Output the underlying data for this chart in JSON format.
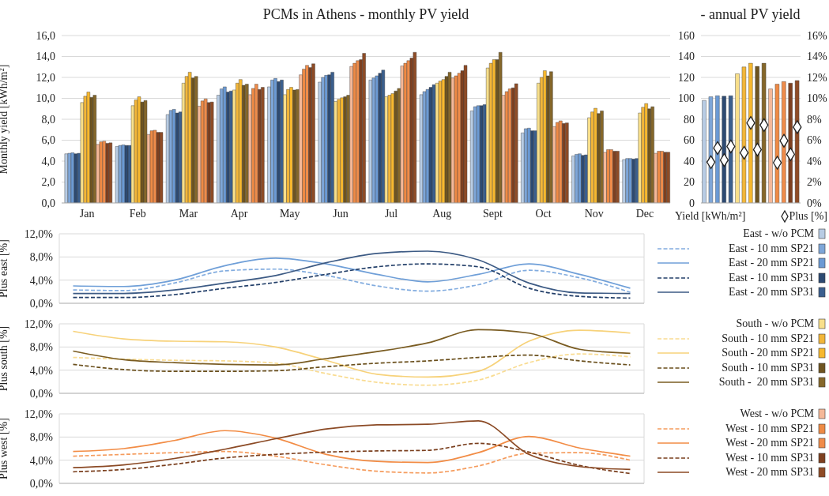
{
  "chart_data": [
    {
      "type": "bar",
      "title": "PCMs in Athens - monthly PV yield",
      "ylabel": "Monthly yield [kWh/m²]",
      "categories": [
        "Jan",
        "Feb",
        "Mar",
        "Apr",
        "May",
        "Jun",
        "Jul",
        "Aug",
        "Sept",
        "Oct",
        "Nov",
        "Dec"
      ],
      "series": [
        {
          "name": "East - w/o PCM",
          "color": "#b8cce4",
          "values": [
            4.7,
            5.4,
            8.45,
            10.3,
            11.1,
            11.55,
            11.75,
            10.35,
            8.8,
            6.7,
            4.5,
            4.15
          ]
        },
        {
          "name": "East - 10 mm SP21",
          "color": "#7ea6d8",
          "values": [
            4.75,
            5.5,
            8.85,
            10.9,
            11.75,
            12.0,
            11.95,
            10.65,
            9.2,
            7.1,
            4.65,
            4.25
          ]
        },
        {
          "name": "East - 20 mm SP21",
          "color": "#6b9ad4",
          "values": [
            4.8,
            5.55,
            8.95,
            11.1,
            11.9,
            12.2,
            12.15,
            10.85,
            9.3,
            7.15,
            4.7,
            4.25
          ]
        },
        {
          "name": "East - 10 mm SP31",
          "color": "#2d4a72",
          "values": [
            4.7,
            5.5,
            8.6,
            10.6,
            11.6,
            12.25,
            12.4,
            11.05,
            9.3,
            6.9,
            4.55,
            4.2
          ]
        },
        {
          "name": "East - 20 mm SP31",
          "color": "#3b5f8e",
          "values": [
            4.75,
            5.5,
            8.7,
            10.7,
            11.75,
            12.5,
            12.7,
            11.3,
            9.4,
            6.9,
            4.6,
            4.25
          ]
        },
        {
          "name": "South - w/o PCM",
          "color": "#f8df8a",
          "values": [
            9.6,
            9.3,
            11.45,
            10.8,
            10.35,
            9.7,
            10.15,
            11.45,
            12.9,
            11.45,
            8.15,
            8.6
          ]
        },
        {
          "name": "South - 10 mm SP21",
          "color": "#f2b63a",
          "values": [
            10.2,
            9.85,
            12.1,
            11.45,
            10.85,
            9.9,
            10.3,
            11.65,
            13.35,
            12.0,
            8.7,
            9.15
          ]
        },
        {
          "name": "South - 20 mm SP21",
          "color": "#f7b82e",
          "values": [
            10.6,
            10.15,
            12.5,
            11.8,
            11.05,
            10.05,
            10.45,
            11.8,
            13.7,
            12.65,
            9.05,
            9.5
          ]
        },
        {
          "name": "South - 10 mm SP31",
          "color": "#6e5420",
          "values": [
            10.1,
            9.65,
            11.95,
            11.25,
            10.8,
            10.15,
            10.7,
            12.1,
            13.7,
            12.15,
            8.55,
            9.0
          ]
        },
        {
          "name": "South -  20 mm SP31",
          "color": "#85672a",
          "values": [
            10.3,
            9.8,
            12.1,
            11.35,
            10.85,
            10.3,
            10.95,
            12.5,
            14.4,
            12.55,
            8.8,
            9.2
          ]
        },
        {
          "name": "West - w/o PCM",
          "color": "#f5b898",
          "values": [
            5.6,
            6.55,
            9.25,
            10.35,
            12.25,
            13.05,
            13.1,
            11.95,
            10.3,
            7.3,
            4.85,
            4.75
          ]
        },
        {
          "name": "West - 10 mm SP21",
          "color": "#ee8a45",
          "values": [
            5.85,
            6.9,
            9.75,
            10.95,
            12.8,
            13.35,
            13.35,
            12.15,
            10.65,
            7.7,
            5.1,
            4.95
          ]
        },
        {
          "name": "West - 20 mm SP21",
          "color": "#f08c4a",
          "values": [
            5.9,
            6.95,
            9.95,
            11.35,
            13.15,
            13.6,
            13.6,
            12.4,
            10.9,
            7.85,
            5.1,
            4.95
          ]
        },
        {
          "name": "West - 10 mm SP31",
          "color": "#7e4020",
          "values": [
            5.7,
            6.75,
            9.6,
            10.85,
            12.95,
            13.7,
            13.85,
            12.65,
            11.0,
            7.6,
            4.95,
            4.85
          ]
        },
        {
          "name": "West - 20 mm SP31",
          "color": "#8f4c26",
          "values": [
            5.75,
            6.75,
            9.65,
            11.05,
            13.3,
            14.3,
            14.4,
            13.15,
            11.4,
            7.65,
            4.95,
            4.85
          ]
        }
      ],
      "ylim": [
        0,
        16
      ],
      "yticks": [
        {
          "value": 0,
          "label": "0,0"
        },
        {
          "value": 2,
          "label": "2,0"
        },
        {
          "value": 4,
          "label": "4,0"
        },
        {
          "value": 6,
          "label": "6,0"
        },
        {
          "value": 8,
          "label": "8,0"
        },
        {
          "value": 10,
          "label": "10,0"
        },
        {
          "value": 12,
          "label": "12,0"
        },
        {
          "value": 14,
          "label": "14,0"
        },
        {
          "value": 16,
          "label": "16,0"
        }
      ],
      "grid": "y",
      "legend": "right"
    },
    {
      "type": "bar",
      "title": "- annual PV yield",
      "xlabel": "Yield [kWh/m²]",
      "categories": [
        null,
        null,
        null,
        null,
        null,
        null,
        null,
        null,
        null,
        null,
        null,
        null,
        null,
        null,
        null
      ],
      "series": [
        {
          "values": [
            98,
            101.5,
            102.5,
            102,
            102.5,
            123.5,
            130,
            133.5,
            130.5,
            133.5,
            109,
            113.5,
            116,
            114.5,
            117
          ],
          "colors": [
            "#b8cce4",
            "#7ea6d8",
            "#6b9ad4",
            "#2d4a72",
            "#3b5f8e",
            "#f8df8a",
            "#f2b63a",
            "#f7b82e",
            "#6e5420",
            "#85672a",
            "#f5b898",
            "#ee8a45",
            "#f08c4a",
            "#7e4020",
            "#8f4c26"
          ]
        },
        {
          "type": "scatter",
          "name": "Plus [%]",
          "axis": "y2",
          "color": "#ffffff",
          "marker": "diamond",
          "values": [
            null,
            3.9,
            5.25,
            4.1,
            5.4,
            null,
            4.8,
            7.65,
            5.1,
            7.45,
            null,
            3.85,
            5.95,
            4.65,
            7.25
          ]
        }
      ],
      "ylim": [
        0,
        160
      ],
      "yticks": [
        0,
        20,
        40,
        60,
        80,
        100,
        120,
        140,
        160
      ],
      "y2lim": [
        0,
        16
      ],
      "y2ticks": [
        {
          "value": 0,
          "label": "0%"
        },
        {
          "value": 2,
          "label": "2%"
        },
        {
          "value": 4,
          "label": "4%"
        },
        {
          "value": 6,
          "label": "6%"
        },
        {
          "value": 8,
          "label": "8%"
        },
        {
          "value": 10,
          "label": "10%"
        },
        {
          "value": 12,
          "label": "12%"
        },
        {
          "value": 14,
          "label": "14%"
        },
        {
          "value": 16,
          "label": "16%"
        }
      ],
      "grid": "y",
      "legend": "bottom",
      "tick_labels": "y"
    },
    {
      "type": "line",
      "ylabel": "Plus east [%]",
      "categories": [
        null,
        null,
        null,
        null,
        null,
        null,
        null,
        null,
        null,
        null,
        null,
        null
      ],
      "series": [
        {
          "color": "#82acdf",
          "line_style": "dashed",
          "values": [
            2.3,
            2.2,
            3.5,
            5.6,
            5.9,
            4.8,
            3.0,
            2.1,
            3.2,
            5.7,
            4.4,
            1.9
          ]
        },
        {
          "color": "#6f9fd8",
          "values": [
            3.0,
            2.9,
            4.0,
            6.5,
            7.8,
            6.8,
            5.0,
            3.7,
            5.0,
            6.8,
            5.0,
            2.6
          ]
        },
        {
          "color": "#24406a",
          "line_style": "dashed",
          "values": [
            1.0,
            1.0,
            1.5,
            2.6,
            3.6,
            5.0,
            6.3,
            6.8,
            6.3,
            2.6,
            1.2,
            0.9
          ]
        },
        {
          "color": "#3c5a84",
          "values": [
            1.7,
            1.7,
            2.3,
            3.5,
            4.8,
            7.0,
            8.6,
            9.0,
            7.5,
            3.5,
            1.8,
            1.7
          ]
        }
      ],
      "ylim": [
        0,
        12
      ],
      "yticks": [
        {
          "value": 0,
          "label": "0,0%"
        },
        {
          "value": 4,
          "label": "4,0%"
        },
        {
          "value": 8,
          "label": "8,0%"
        },
        {
          "value": 12,
          "label": "12,0%"
        }
      ],
      "grid": true,
      "tick_labels": "y",
      "marker": "none",
      "line_style": "solid"
    },
    {
      "type": "line",
      "ylabel": "Plus south [%]",
      "categories": [
        null,
        null,
        null,
        null,
        null,
        null,
        null,
        null,
        null,
        null,
        null,
        null
      ],
      "series": [
        {
          "color": "#f9dc92",
          "line_style": "dashed",
          "values": [
            6.2,
            5.9,
            5.7,
            5.6,
            5.2,
            3.4,
            1.9,
            1.4,
            2.3,
            5.3,
            6.8,
            6.3
          ]
        },
        {
          "color": "#f7d27a",
          "values": [
            10.7,
            9.4,
            9.0,
            8.9,
            8.0,
            5.7,
            3.3,
            2.8,
            3.8,
            9.0,
            10.9,
            10.4
          ]
        },
        {
          "color": "#6a4f1c",
          "line_style": "dashed",
          "values": [
            5.0,
            4.1,
            3.8,
            3.8,
            3.9,
            4.6,
            5.2,
            5.6,
            6.2,
            6.6,
            5.6,
            4.9
          ]
        },
        {
          "color": "#7a5c22",
          "values": [
            7.3,
            5.8,
            5.3,
            5.0,
            4.9,
            6.0,
            7.2,
            8.7,
            11.0,
            10.4,
            7.6,
            6.9
          ]
        }
      ],
      "ylim": [
        0,
        12
      ],
      "yticks": [
        {
          "value": 0,
          "label": "0,0%"
        },
        {
          "value": 4,
          "label": "4,0%"
        },
        {
          "value": 8,
          "label": "8,0%"
        },
        {
          "value": 12,
          "label": "12,0%"
        }
      ],
      "grid": true,
      "tick_labels": "y",
      "marker": "none",
      "line_style": "solid"
    },
    {
      "type": "line",
      "ylabel": "Plus west [%]",
      "categories": [
        null,
        null,
        null,
        null,
        null,
        null,
        null,
        null,
        null,
        null,
        null,
        null
      ],
      "series": [
        {
          "color": "#f59c5e",
          "line_style": "dashed",
          "values": [
            4.7,
            5.0,
            5.3,
            5.5,
            4.7,
            3.2,
            2.1,
            1.8,
            3.0,
            5.2,
            5.3,
            4.0
          ]
        },
        {
          "color": "#f28c45",
          "values": [
            5.5,
            6.0,
            7.4,
            9.1,
            7.8,
            5.0,
            3.8,
            3.6,
            5.3,
            8.1,
            6.1,
            4.7
          ]
        },
        {
          "color": "#7a3f1e",
          "line_style": "dashed",
          "values": [
            2.0,
            2.4,
            3.3,
            4.4,
            5.0,
            5.4,
            5.6,
            5.7,
            6.9,
            5.4,
            3.1,
            1.7
          ]
        },
        {
          "color": "#8b4a25",
          "values": [
            2.7,
            3.2,
            4.3,
            5.9,
            7.7,
            9.4,
            10.1,
            10.2,
            10.8,
            5.0,
            2.9,
            2.4
          ]
        }
      ],
      "ylim": [
        0,
        12
      ],
      "yticks": [
        {
          "value": 0,
          "label": "0,0%"
        },
        {
          "value": 4,
          "label": "4,0%"
        },
        {
          "value": 8,
          "label": "8,0%"
        },
        {
          "value": 12,
          "label": "12,0%"
        }
      ],
      "grid": true,
      "tick_labels": "y",
      "marker": "none",
      "line_style": "solid"
    }
  ]
}
